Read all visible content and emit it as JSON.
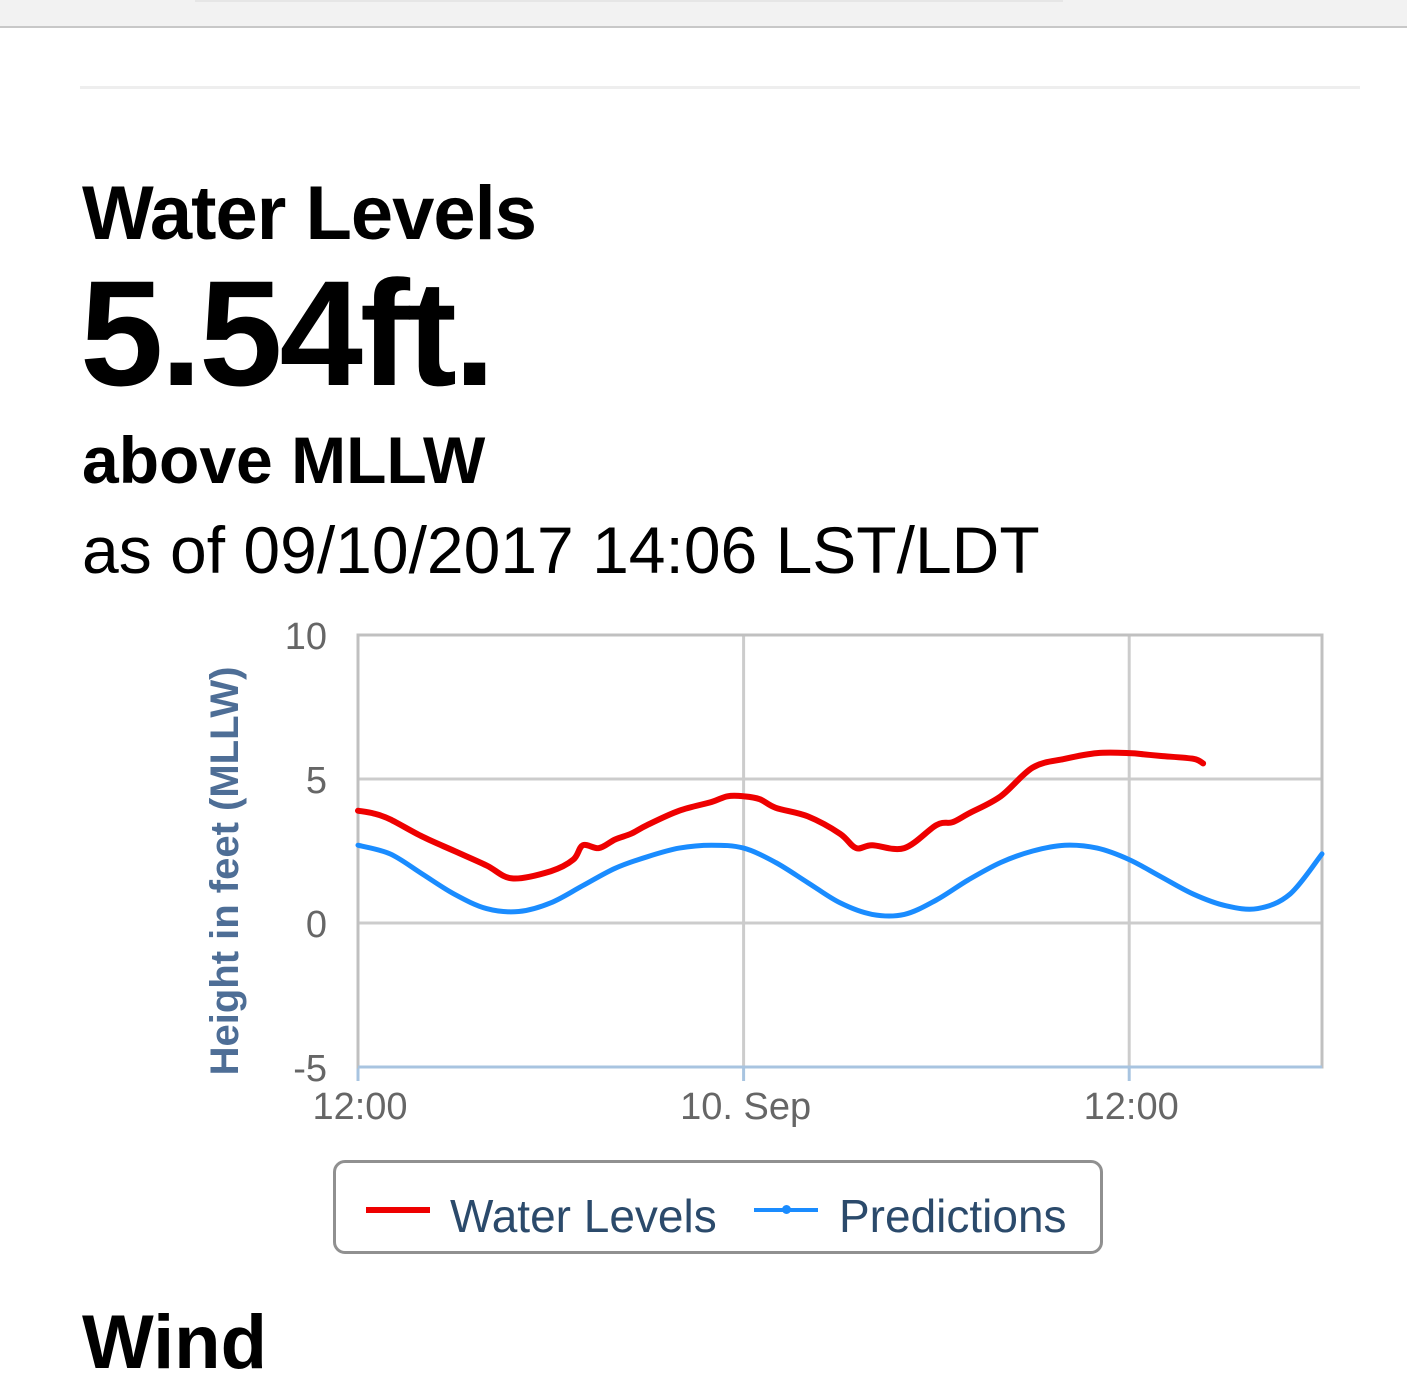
{
  "header": {
    "title": "Water Levels",
    "value": "5.54ft.",
    "datum": "above MLLW",
    "timestamp": "as of 09/10/2017 14:06 LST/LDT"
  },
  "next_section_title": "Wind",
  "chart_data": {
    "type": "line",
    "ylabel": "Height in feet (MLLW)",
    "xlabel": "",
    "ylim": [
      -5,
      10
    ],
    "y_ticks": [
      -5,
      0,
      5,
      10
    ],
    "x_unit": "hours",
    "x_range": [
      -12,
      18
    ],
    "x_ticks": [
      {
        "value": -12,
        "label": "12:00"
      },
      {
        "value": 0,
        "label": "10. Sep"
      },
      {
        "value": 12,
        "label": "12:00"
      }
    ],
    "grid": true,
    "legend_position": "bottom-center",
    "series": [
      {
        "name": "Water Levels",
        "color": "#ee0000",
        "x": [
          -12,
          -11.5,
          -11,
          -10,
          -9,
          -8,
          -7.2,
          -6,
          -5.3,
          -5,
          -4.5,
          -4,
          -3.5,
          -3,
          -2,
          -1,
          -0.5,
          0,
          0.5,
          1,
          2,
          3,
          3.5,
          4,
          5,
          6,
          6.5,
          7,
          8,
          9,
          10,
          11,
          12,
          12.5,
          13,
          14,
          14.3
        ],
        "y": [
          3.9,
          3.8,
          3.6,
          3.0,
          2.5,
          2.0,
          1.55,
          1.8,
          2.2,
          2.7,
          2.6,
          2.9,
          3.1,
          3.4,
          3.9,
          4.2,
          4.4,
          4.4,
          4.3,
          4.0,
          3.7,
          3.1,
          2.6,
          2.7,
          2.6,
          3.4,
          3.5,
          3.8,
          4.4,
          5.4,
          5.7,
          5.9,
          5.9,
          5.85,
          5.8,
          5.7,
          5.54
        ]
      },
      {
        "name": "Predictions",
        "color": "#1a8cff",
        "x": [
          -12,
          -11,
          -10,
          -9,
          -8,
          -7,
          -6,
          -5,
          -4,
          -3,
          -2,
          -1,
          0,
          1,
          2,
          3,
          4,
          5,
          6,
          7,
          8,
          9,
          10,
          11,
          12,
          13,
          14,
          15,
          16,
          17,
          18
        ],
        "y": [
          2.7,
          2.4,
          1.7,
          1.0,
          0.5,
          0.4,
          0.7,
          1.3,
          1.9,
          2.3,
          2.6,
          2.7,
          2.6,
          2.1,
          1.4,
          0.7,
          0.3,
          0.3,
          0.8,
          1.5,
          2.1,
          2.5,
          2.7,
          2.6,
          2.2,
          1.6,
          1.0,
          0.6,
          0.5,
          1.0,
          2.4
        ]
      }
    ]
  }
}
